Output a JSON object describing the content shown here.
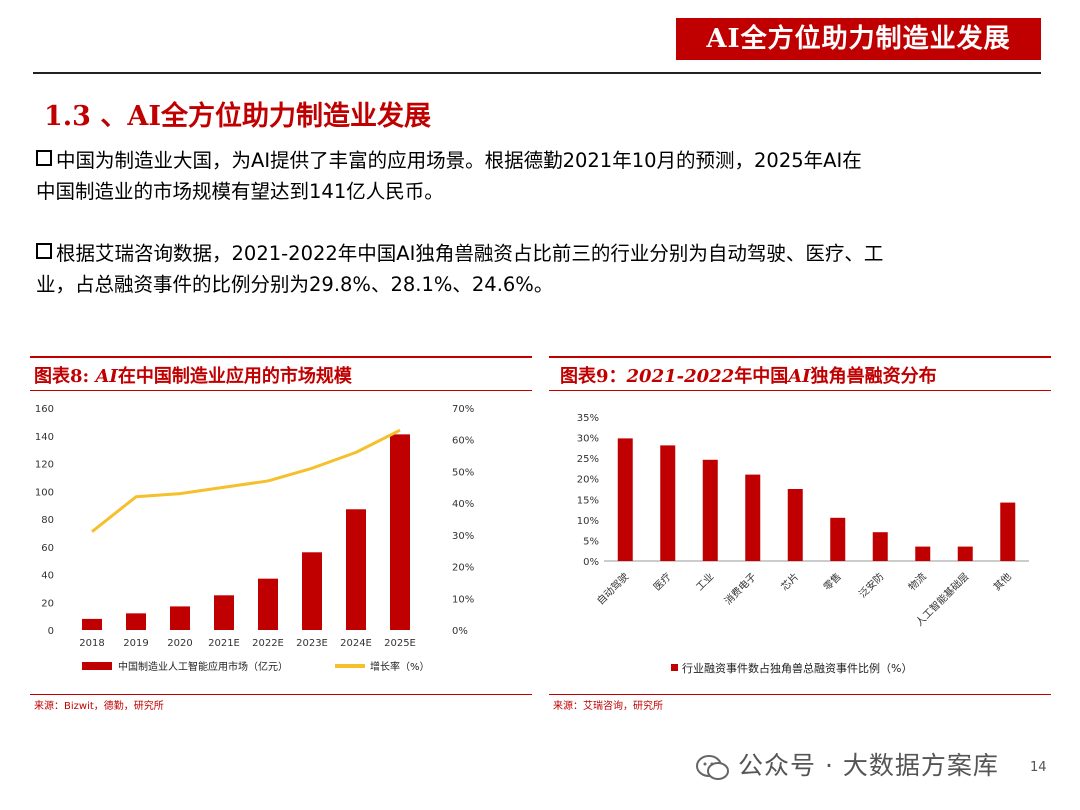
{
  "header": {
    "tag": "AI全方位助力制造业发展"
  },
  "section": {
    "title": "1.3 、AI全方位助力制造业发展"
  },
  "paragraphs": [
    {
      "line1": "中国为制造业大国，为AI提供了丰富的应用场景。根据德勤2021年10月的预测，2025年AI在",
      "line2": "中国制造业的市场规模有望达到141亿人民币。"
    },
    {
      "line1": "根据艾瑞咨询数据，2021-2022年中国AI独角兽融资占比前三的行业分别为自动驾驶、医疗、工",
      "line2": "业，占总融资事件的比例分别为29.8%、28.1%、24.6%。"
    }
  ],
  "chart8": {
    "title_prefix": "图表8: ",
    "title_ai": "AI",
    "title_rest": "在中国制造业应用的市场规模",
    "source": "来源：Bizwit，德勤，研究所"
  },
  "chart9": {
    "title_prefix": "图表9：",
    "title_years": "2021-2022",
    "title_mid": "年中国",
    "title_ai": "AI",
    "title_rest": "独角兽融资分布",
    "source": "来源：艾瑞咨询，研究所"
  },
  "chart_data": [
    {
      "type": "bar",
      "title": "AI在中国制造业应用的市场规模",
      "categories": [
        "2018",
        "2019",
        "2020",
        "2021E",
        "2022E",
        "2023E",
        "2024E",
        "2025E"
      ],
      "series": [
        {
          "name": "中国制造业人工智能应用市场（亿元）",
          "type": "bar",
          "axis": "left",
          "values": [
            8,
            12,
            17,
            25,
            37,
            56,
            87,
            141
          ]
        },
        {
          "name": "增长率（%）",
          "type": "line",
          "axis": "right",
          "values": [
            31,
            42,
            43,
            45,
            47,
            51,
            56,
            63
          ]
        }
      ],
      "y_left": {
        "min": 0,
        "max": 160,
        "ticks": [
          "0",
          "20",
          "40",
          "60",
          "80",
          "100",
          "120",
          "140",
          "160"
        ]
      },
      "y_right": {
        "min": 0,
        "max": 70,
        "ticks": [
          "0%",
          "10%",
          "20%",
          "30%",
          "40%",
          "50%",
          "60%",
          "70%"
        ]
      },
      "colors": {
        "bar": "#c00000",
        "line": "#f5c02b"
      }
    },
    {
      "type": "bar",
      "title": "2021-2022年中国AI独角兽融资分布",
      "categories": [
        "自动驾驶",
        "医疗",
        "工业",
        "消费电子",
        "芯片",
        "零售",
        "泛安防",
        "物流",
        "人工智能基础层",
        "其他"
      ],
      "series": [
        {
          "name": "行业融资事件数占独角兽总融资事件比例（%）",
          "values": [
            29.8,
            28.1,
            24.6,
            21,
            17.5,
            10.5,
            7,
            3.5,
            3.5,
            14.2
          ]
        }
      ],
      "y": {
        "min": 0,
        "max": 35,
        "ticks": [
          "0%",
          "5%",
          "10%",
          "15%",
          "20%",
          "25%",
          "30%",
          "35%"
        ]
      },
      "colors": {
        "bar": "#c00000"
      }
    }
  ],
  "watermark": {
    "text": "公众号 · 大数据方案库",
    "page": "14"
  }
}
